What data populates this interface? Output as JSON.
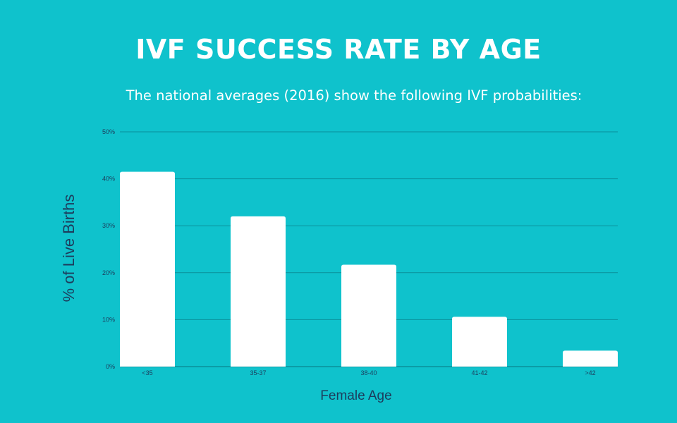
{
  "header": {
    "title": "IVF SUCCESS RATE BY AGE",
    "subtitle": "The national averages (2016) show the following IVF probabilities:"
  },
  "colors": {
    "background": "#0fc2cc",
    "bar": "#ffffff",
    "gridline": "#0a8f9a",
    "axis_text": "#1d3c5c"
  },
  "chart_data": {
    "type": "bar",
    "categories": [
      "<35",
      "35-37",
      "38-40",
      "41-42",
      ">42"
    ],
    "values": [
      41.5,
      32,
      21.7,
      10.6,
      3.4
    ],
    "xlabel": "Female Age",
    "ylabel": "% of Live Births",
    "ylim": [
      0,
      50
    ],
    "yticks": [
      0,
      10,
      20,
      30,
      40,
      50
    ],
    "ytick_labels": [
      "0%",
      "10%",
      "20%",
      "30%",
      "40%",
      "50%"
    ],
    "grid": true,
    "legend": "none"
  }
}
